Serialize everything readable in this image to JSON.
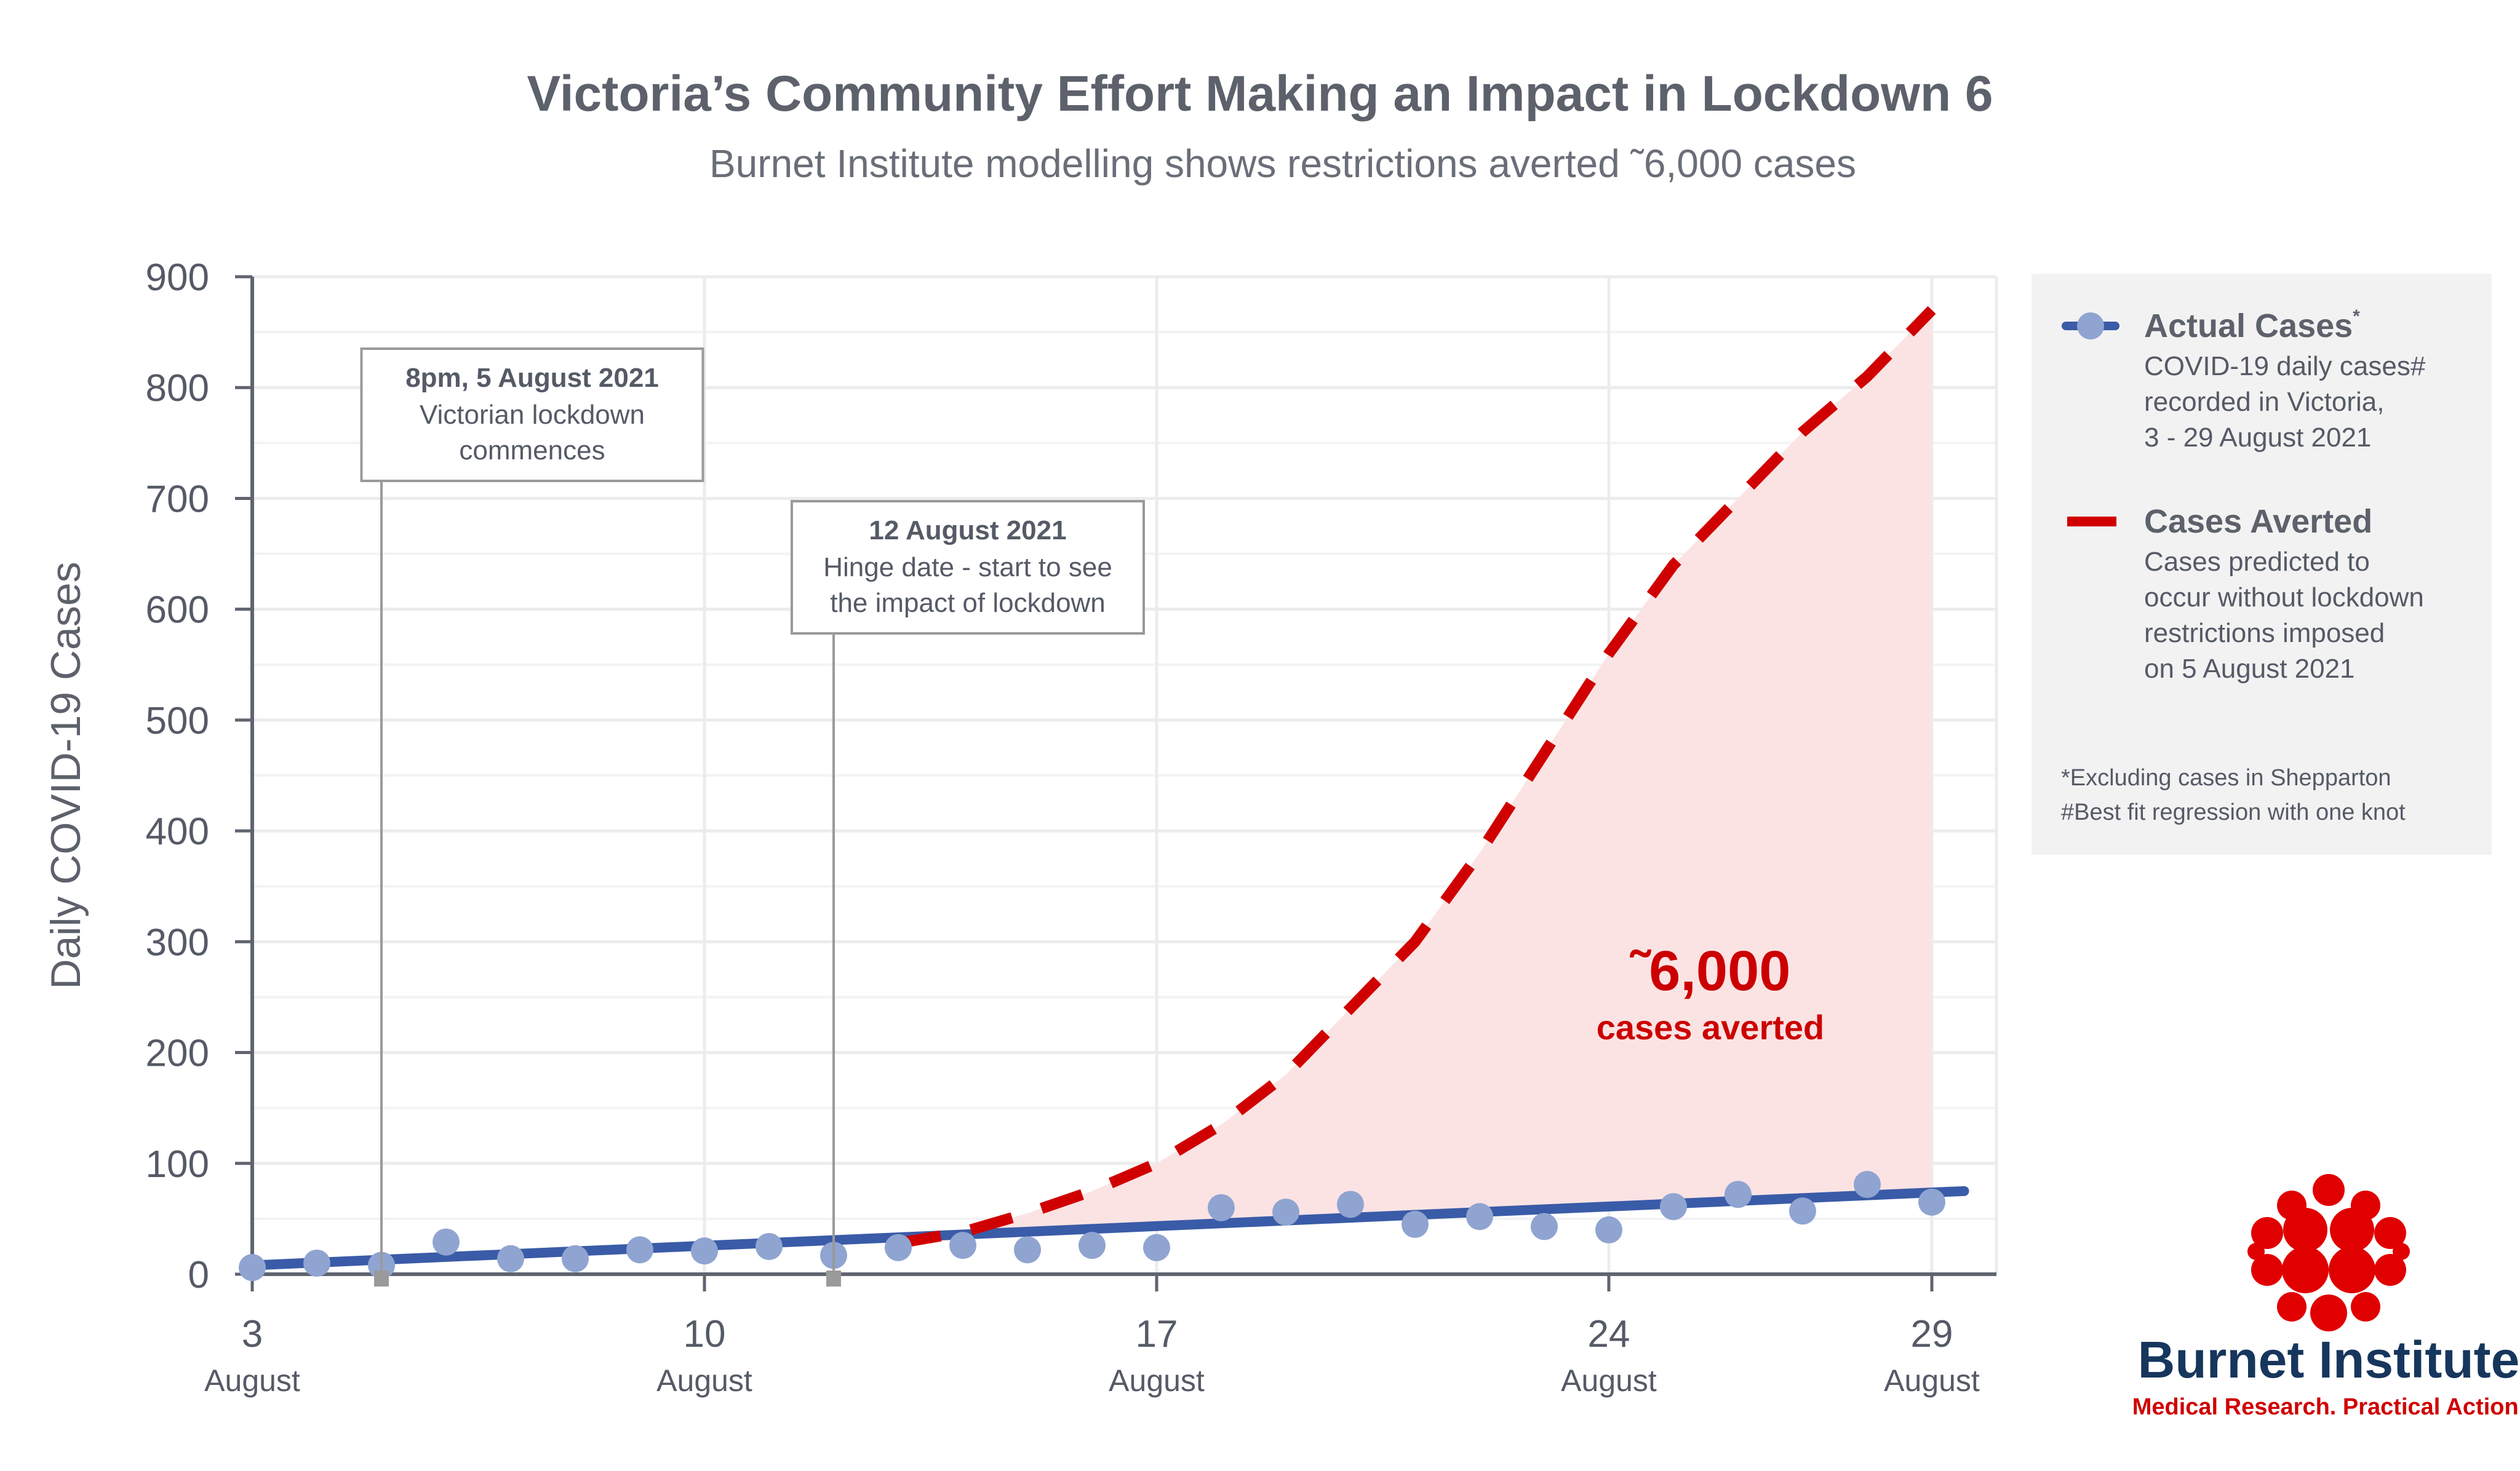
{
  "chart_data": {
    "type": "line",
    "title": "Victoria’s Community Effort Making an Impact in Lockdown 6",
    "subtitle": "Burnet Institute modelling shows restrictions averted ˜6,000 cases",
    "ylabel": "Daily COVID-19 Cases",
    "ylim": [
      0,
      900
    ],
    "yticks": [
      0,
      100,
      200,
      300,
      400,
      500,
      600,
      700,
      800,
      900
    ],
    "xlim": [
      3,
      30
    ],
    "xticks": [
      {
        "x": 3,
        "day": "3",
        "month": "August"
      },
      {
        "x": 10,
        "day": "10",
        "month": "August"
      },
      {
        "x": 17,
        "day": "17",
        "month": "August"
      },
      {
        "x": 24,
        "day": "24",
        "month": "August"
      },
      {
        "x": 29,
        "day": "29",
        "month": "August"
      }
    ],
    "grid": true,
    "series": [
      {
        "name": "Actual Cases*",
        "type": "scatter",
        "color": "#8fa4d0",
        "x": [
          3,
          4,
          5,
          6,
          7,
          8,
          9,
          10,
          11,
          12,
          13,
          14,
          15,
          16,
          17,
          18,
          19,
          20,
          21,
          22,
          23,
          24,
          25,
          26,
          27,
          28,
          29
        ],
        "values": [
          6,
          10,
          8,
          29,
          14,
          14,
          22,
          21,
          25,
          17,
          24,
          26,
          22,
          26,
          24,
          60,
          56,
          63,
          45,
          52,
          43,
          40,
          61,
          72,
          57,
          81,
          65
        ]
      },
      {
        "name": "Actual Cases*",
        "type": "line",
        "role": "fit",
        "color": "#3a5ba7",
        "x": [
          3,
          29.5
        ],
        "values": [
          8,
          75
        ]
      },
      {
        "name": "Cases Averted",
        "type": "line",
        "style": "dashed",
        "color": "#d00000",
        "x": [
          13,
          14,
          15,
          16,
          17,
          18,
          19,
          20,
          21,
          22,
          23,
          24,
          25,
          26,
          27,
          28,
          29
        ],
        "values": [
          28,
          38,
          55,
          75,
          100,
          135,
          180,
          240,
          300,
          380,
          470,
          560,
          640,
          700,
          760,
          810,
          870
        ]
      }
    ],
    "fill_between": {
      "x_start": 13,
      "x_end": 29,
      "color": "#fbe3e4"
    },
    "annotations": [
      {
        "x": 5,
        "bold": "8pm, 5 August 2021",
        "lines": [
          "Victorian lockdown",
          "commences"
        ]
      },
      {
        "x": 12,
        "bold": "12 August 2021",
        "lines": [
          "Hinge date - start to see",
          "the impact of lockdown"
        ]
      }
    ],
    "callout": {
      "big": "˜6,000",
      "small": "cases averted",
      "color": "#cc0000"
    },
    "legend": {
      "placement": "right",
      "items": [
        {
          "title": "Actual Cases",
          "title_sup": "*",
          "lines": [
            "COVID-19 daily cases#",
            "recorded in Victoria,",
            "3 - 29 August 2021"
          ]
        },
        {
          "title": "Cases Averted",
          "title_sup": "",
          "lines": [
            "Cases predicted to",
            "occur without lockdown",
            "restrictions imposed",
            "on 5 August 2021"
          ]
        }
      ],
      "footnotes": [
        "*Excluding cases in Shepparton",
        "#Best fit regression with one knot"
      ]
    },
    "logo": {
      "name": "Burnet Institute",
      "tagline": "Medical Research. Practical Action."
    }
  }
}
